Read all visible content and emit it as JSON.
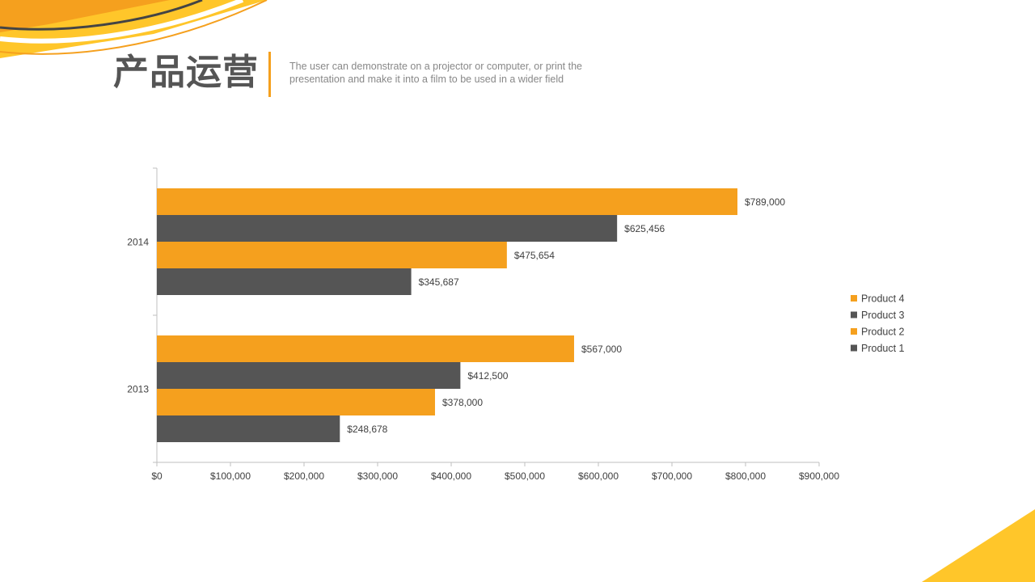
{
  "slide": {
    "title": "产品运营",
    "subtitle": "The user can demonstrate on a projector or computer, or print the presentation and make it into a film to be used in a wider field"
  },
  "colors": {
    "accent": "#F5A01E",
    "dark": "#555555",
    "yellow": "#FFC62A"
  },
  "chart_data": {
    "type": "bar",
    "orientation": "horizontal",
    "title": "",
    "xlabel": "",
    "ylabel": "",
    "categories": [
      "2013",
      "2014"
    ],
    "series": [
      {
        "name": "Product 1",
        "values": [
          248678,
          345687
        ],
        "labels": [
          "$248,678",
          "$345,687"
        ],
        "color": "#555555"
      },
      {
        "name": "Product 2",
        "values": [
          378000,
          475654
        ],
        "labels": [
          "$378,000",
          "$475,654"
        ],
        "color": "#F5A01E"
      },
      {
        "name": "Product 3",
        "values": [
          412500,
          625456
        ],
        "labels": [
          "$412,500",
          "$625,456"
        ],
        "color": "#555555"
      },
      {
        "name": "Product 4",
        "values": [
          567000,
          789000
        ],
        "labels": [
          "$567,000",
          "$789,000"
        ],
        "color": "#F5A01E"
      }
    ],
    "xlim": [
      0,
      900000
    ],
    "x_ticks": [
      0,
      100000,
      200000,
      300000,
      400000,
      500000,
      600000,
      700000,
      800000,
      900000
    ],
    "x_tick_labels": [
      "$0",
      "$100,000",
      "$200,000",
      "$300,000",
      "$400,000",
      "$500,000",
      "$600,000",
      "$700,000",
      "$800,000",
      "$900,000"
    ],
    "legend_order": [
      "Product 4",
      "Product 3",
      "Product 2",
      "Product 1"
    ],
    "legend_position": "right",
    "grid": false,
    "data_labels": true
  }
}
